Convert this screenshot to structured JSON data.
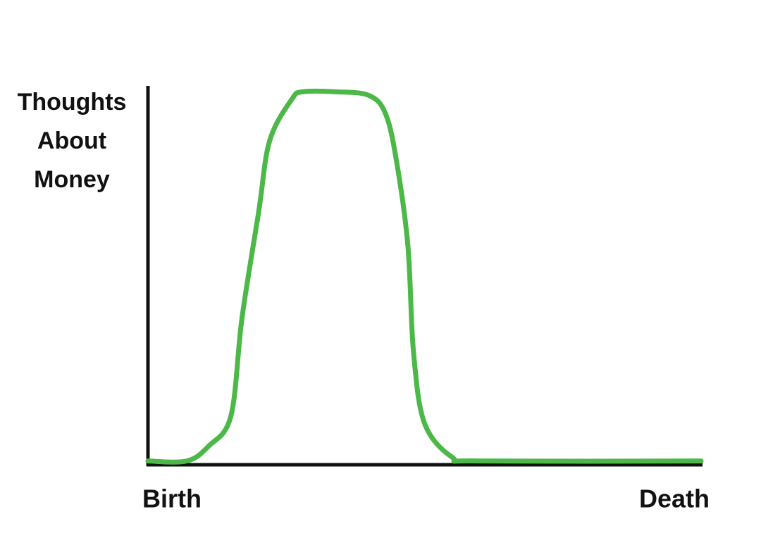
{
  "chart_data": {
    "type": "line",
    "y_label": "Thoughts About Money",
    "xlim": [
      0,
      100
    ],
    "ylim": [
      0,
      100
    ],
    "xticks": [
      {
        "value": 0,
        "label": "Birth"
      },
      {
        "value": 100,
        "label": "Death"
      }
    ],
    "series": [
      {
        "color": "#4cb848",
        "x": [
          0,
          7,
          11,
          15,
          17,
          20,
          22,
          26,
          28,
          34,
          40,
          43,
          45,
          47,
          48,
          50,
          55,
          60,
          100
        ],
        "values": [
          1,
          1,
          5,
          13,
          39,
          67,
          86,
          97,
          99,
          99,
          98,
          93,
          80,
          58,
          30,
          11,
          2,
          1,
          1
        ]
      }
    ]
  }
}
